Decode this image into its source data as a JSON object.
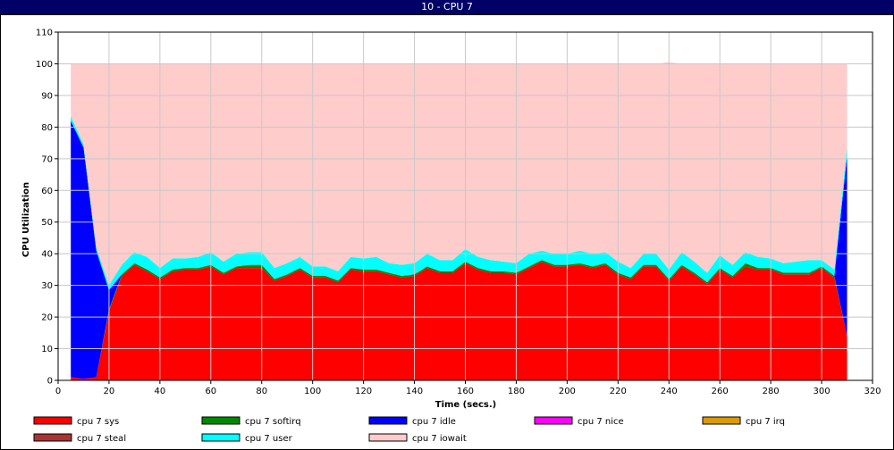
{
  "window": {
    "title": "10 - CPU 7"
  },
  "chart_data": {
    "type": "area",
    "stacked": true,
    "xlabel": "Time (secs.)",
    "ylabel": "CPU Utilization",
    "xlim": [
      0,
      320
    ],
    "ylim": [
      0,
      110
    ],
    "x_ticks": [
      0,
      20,
      40,
      60,
      80,
      100,
      120,
      140,
      160,
      180,
      200,
      220,
      240,
      260,
      280,
      300,
      320
    ],
    "y_ticks": [
      0,
      10,
      20,
      30,
      40,
      50,
      60,
      70,
      80,
      90,
      100,
      110
    ],
    "grid": true,
    "legend_position": "bottom",
    "x": [
      5,
      10,
      15,
      20,
      25,
      30,
      35,
      40,
      45,
      50,
      55,
      60,
      65,
      70,
      75,
      80,
      85,
      90,
      95,
      100,
      105,
      110,
      115,
      120,
      125,
      130,
      135,
      140,
      145,
      150,
      155,
      160,
      165,
      170,
      175,
      180,
      185,
      190,
      195,
      200,
      205,
      210,
      215,
      220,
      225,
      230,
      235,
      240,
      245,
      250,
      255,
      260,
      265,
      270,
      275,
      280,
      285,
      290,
      295,
      300,
      305,
      310
    ],
    "series": [
      {
        "name": "cpu 7 sys",
        "color": "#ff0000",
        "values": [
          1,
          0.5,
          1,
          22,
          33,
          36.5,
          34.5,
          32,
          34.5,
          35,
          35,
          36,
          33.5,
          35.5,
          35.5,
          35.5,
          31.5,
          33,
          35,
          32.5,
          32.5,
          31,
          35,
          34.5,
          34.5,
          33.5,
          32.5,
          33,
          35.5,
          34,
          34,
          37,
          35,
          34,
          34,
          33.5,
          35.5,
          37.5,
          36,
          36,
          36.5,
          35.5,
          36.5,
          33.5,
          32,
          36,
          36,
          31.5,
          36,
          33.5,
          30.5,
          35,
          32.5,
          36,
          35,
          35,
          33.5,
          33.5,
          33.5,
          35.5,
          32.5,
          14
        ]
      },
      {
        "name": "cpu 7 softirq",
        "color": "#008800",
        "values": [
          0,
          0,
          0,
          0.5,
          0.5,
          0.5,
          0.5,
          0.5,
          0.5,
          0.5,
          0.5,
          0.5,
          0.5,
          0.5,
          1,
          1,
          0.5,
          0.5,
          0.5,
          0.5,
          0.5,
          0.5,
          0.5,
          0.5,
          0.5,
          0.5,
          0.5,
          0.5,
          0.5,
          0.5,
          0.5,
          0.5,
          0.5,
          0.5,
          0.5,
          0.5,
          0.5,
          0.5,
          0.5,
          0.5,
          0.5,
          0.5,
          0.5,
          0.5,
          0.5,
          0.5,
          0.5,
          0.5,
          0.5,
          0.5,
          0.5,
          0.5,
          0.5,
          1,
          0.5,
          0.5,
          0.5,
          0.5,
          0.5,
          0.5,
          0.5,
          0
        ]
      },
      {
        "name": "cpu 7 idle",
        "color": "#0000ff",
        "values": [
          81,
          73,
          40,
          6,
          0,
          0,
          0,
          0,
          0,
          0,
          0,
          0,
          0,
          0,
          0,
          0,
          0,
          0,
          0,
          0,
          0,
          0,
          0,
          0,
          0,
          0,
          0,
          0,
          0,
          0,
          0,
          0,
          0,
          0,
          0,
          0,
          0,
          0,
          0,
          0,
          0,
          0,
          0,
          0,
          0,
          0,
          0,
          0,
          0,
          0,
          0,
          0,
          0,
          0,
          0,
          0,
          0,
          0,
          0,
          0,
          0,
          57
        ]
      },
      {
        "name": "cpu 7 nice",
        "color": "#ff00ff",
        "values": [
          0,
          0,
          0,
          0,
          0,
          0,
          0,
          0,
          0,
          0,
          0,
          0,
          0,
          0,
          0,
          0,
          0,
          0,
          0,
          0,
          0,
          0,
          0,
          0,
          0,
          0,
          0,
          0,
          0,
          0,
          0,
          0,
          0,
          0,
          0,
          0,
          0,
          0,
          0,
          0,
          0,
          0,
          0,
          0,
          0,
          0,
          0,
          0,
          0,
          0,
          0,
          0,
          0,
          0,
          0,
          0,
          0,
          0,
          0,
          0,
          0,
          0
        ]
      },
      {
        "name": "cpu 7 irq",
        "color": "#dd9900",
        "values": [
          0,
          0,
          0,
          0,
          0,
          0,
          0,
          0,
          0,
          0,
          0,
          0,
          0,
          0,
          0,
          0,
          0,
          0,
          0,
          0,
          0,
          0,
          0,
          0,
          0,
          0,
          0,
          0,
          0,
          0,
          0,
          0,
          0,
          0,
          0,
          0,
          0,
          0,
          0,
          0,
          0,
          0,
          0,
          0,
          0,
          0,
          0,
          0,
          0,
          0,
          0,
          0,
          0,
          0,
          0,
          0,
          0,
          0,
          0,
          0,
          0,
          0
        ]
      },
      {
        "name": "cpu 7 steal",
        "color": "#aa3333",
        "values": [
          0,
          0,
          0,
          0,
          0,
          0,
          0,
          0,
          0,
          0,
          0,
          0,
          0,
          0,
          0,
          0,
          0,
          0,
          0,
          0,
          0,
          0,
          0,
          0,
          0,
          0,
          0,
          0,
          0,
          0,
          0,
          0,
          0,
          0,
          0,
          0,
          0,
          0,
          0,
          0,
          0,
          0,
          0,
          0,
          0,
          0,
          0,
          0,
          0,
          0,
          0,
          0,
          0,
          0,
          0,
          0,
          0,
          0,
          0,
          0,
          0,
          0
        ]
      },
      {
        "name": "cpu 7 user",
        "color": "#00ffff",
        "values": [
          1.5,
          1,
          1,
          1.5,
          3,
          3.5,
          4,
          3,
          3.5,
          3,
          3.5,
          4,
          3.5,
          4,
          4,
          4,
          3.5,
          3.5,
          3.5,
          3,
          3,
          3,
          3.5,
          3.5,
          4,
          3,
          3.5,
          3.5,
          4,
          3.5,
          3.5,
          4,
          3.5,
          3.5,
          3,
          3,
          4,
          3,
          3.5,
          3.5,
          4,
          4,
          3.5,
          3.5,
          3,
          3.5,
          3.5,
          3,
          4,
          3.5,
          3,
          4,
          3.5,
          3.5,
          3.5,
          3,
          3,
          3.5,
          4,
          2,
          2,
          3
        ]
      },
      {
        "name": "cpu 7 iowait",
        "color": "#ffcccc",
        "values": [
          16.5,
          25.5,
          58,
          70,
          63.5,
          59.5,
          61,
          64.5,
          61.5,
          61.5,
          61,
          59.5,
          62.5,
          60,
          59.5,
          59.5,
          64.5,
          63,
          61,
          64,
          64,
          65.5,
          61,
          61.5,
          61,
          63,
          63.5,
          63,
          60,
          62,
          62,
          58.5,
          61,
          62,
          62.5,
          63,
          60,
          59,
          60,
          60,
          59,
          60,
          59.5,
          62.5,
          64.5,
          60,
          60,
          65.5,
          59.5,
          62.5,
          66,
          60.5,
          63.5,
          59.5,
          61,
          61.5,
          63,
          62.5,
          62,
          62,
          65,
          26
        ]
      }
    ]
  },
  "legend": [
    {
      "name": "cpu 7 sys",
      "color": "#ff0000"
    },
    {
      "name": "cpu 7 softirq",
      "color": "#008800"
    },
    {
      "name": "cpu 7 idle",
      "color": "#0000ff"
    },
    {
      "name": "cpu 7 nice",
      "color": "#ff00ff"
    },
    {
      "name": "cpu 7 irq",
      "color": "#dd9900"
    },
    {
      "name": "cpu 7 steal",
      "color": "#aa3333"
    },
    {
      "name": "cpu 7 user",
      "color": "#00ffff"
    },
    {
      "name": "cpu 7 iowait",
      "color": "#ffcccc"
    }
  ]
}
